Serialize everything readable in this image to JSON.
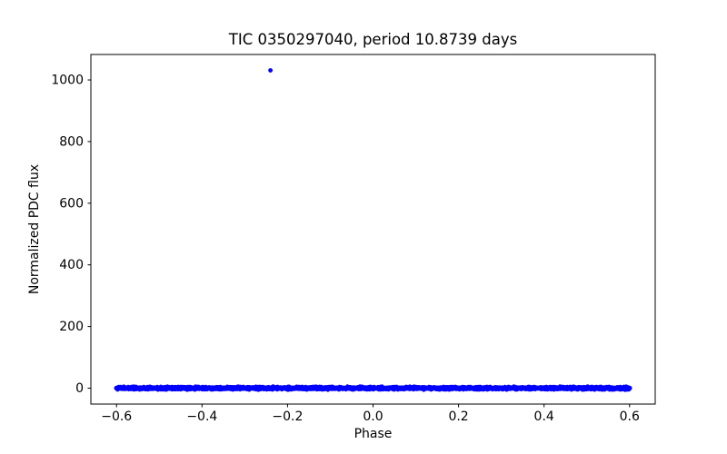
{
  "figure": {
    "background": "#ffffff",
    "kind": "matplotlib scatter figure"
  },
  "chart_data": {
    "type": "scatter",
    "title": "TIC 0350297040, period 10.8739 days",
    "xlabel": "Phase",
    "ylabel": "Normalized PDC flux",
    "xlim": [
      -0.66,
      0.66
    ],
    "ylim": [
      -51.6,
      1082.6
    ],
    "xticks": [
      -0.6,
      -0.4,
      -0.2,
      0.0,
      0.2,
      0.4,
      0.6
    ],
    "xtick_labels": [
      "−0.6",
      "−0.4",
      "−0.2",
      "0.0",
      "0.2",
      "0.4",
      "0.6"
    ],
    "yticks": [
      0,
      200,
      400,
      600,
      800,
      1000
    ],
    "ytick_labels": [
      "0",
      "200",
      "400",
      "600",
      "800",
      "1000"
    ],
    "grid": false,
    "legend": null,
    "marker_color": "#0000ff",
    "axis_color": "#000000",
    "series": [
      {
        "name": "phase-folded-flux-band",
        "kind": "dense-band",
        "x_min": -0.6,
        "x_max": 0.6,
        "y_center": 0,
        "y_jitter": 6,
        "n_points": 2400
      }
    ],
    "outliers": [
      {
        "x": -0.24,
        "y": 1031
      }
    ]
  }
}
